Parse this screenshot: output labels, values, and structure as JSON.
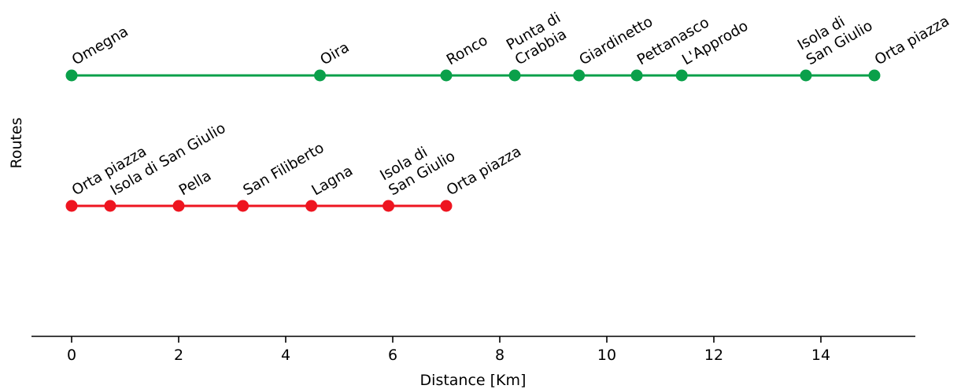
{
  "chart_data": {
    "type": "line",
    "xlabel": "Distance [Km]",
    "ylabel": "Routes",
    "xlim": [
      -0.75,
      15.75
    ],
    "xticks": [
      0,
      2,
      4,
      6,
      8,
      10,
      12,
      14
    ],
    "xtick_labels": [
      "0",
      "2",
      "4",
      "6",
      "8",
      "10",
      "12",
      "14"
    ],
    "grid": false,
    "series": [
      {
        "color": "#0aa04a",
        "stops": [
          {
            "x": 0.0,
            "label": [
              "Omegna"
            ]
          },
          {
            "x": 4.64,
            "label": [
              "Oira"
            ]
          },
          {
            "x": 7.0,
            "label": [
              "Ronco"
            ]
          },
          {
            "x": 8.28,
            "label": [
              "Punta di",
              "Crabbia"
            ]
          },
          {
            "x": 9.48,
            "label": [
              "Giardinetto"
            ]
          },
          {
            "x": 10.56,
            "label": [
              "Pettanasco"
            ]
          },
          {
            "x": 11.4,
            "label": [
              "L'Approdo"
            ]
          },
          {
            "x": 13.72,
            "label": [
              "Isola di",
              "San Giulio"
            ]
          },
          {
            "x": 15.0,
            "label": [
              "Orta piazza"
            ]
          }
        ]
      },
      {
        "color": "#ee1520",
        "stops": [
          {
            "x": 0.0,
            "label": [
              "Orta piazza"
            ]
          },
          {
            "x": 0.72,
            "label": [
              "Isola di San Giulio"
            ]
          },
          {
            "x": 2.0,
            "label": [
              "Pella"
            ]
          },
          {
            "x": 3.2,
            "label": [
              "San Filiberto"
            ]
          },
          {
            "x": 4.48,
            "label": [
              "Lagna"
            ]
          },
          {
            "x": 5.92,
            "label": [
              "Isola di",
              "San Giulio"
            ]
          },
          {
            "x": 7.0,
            "label": [
              "Orta piazza"
            ]
          }
        ]
      }
    ]
  }
}
